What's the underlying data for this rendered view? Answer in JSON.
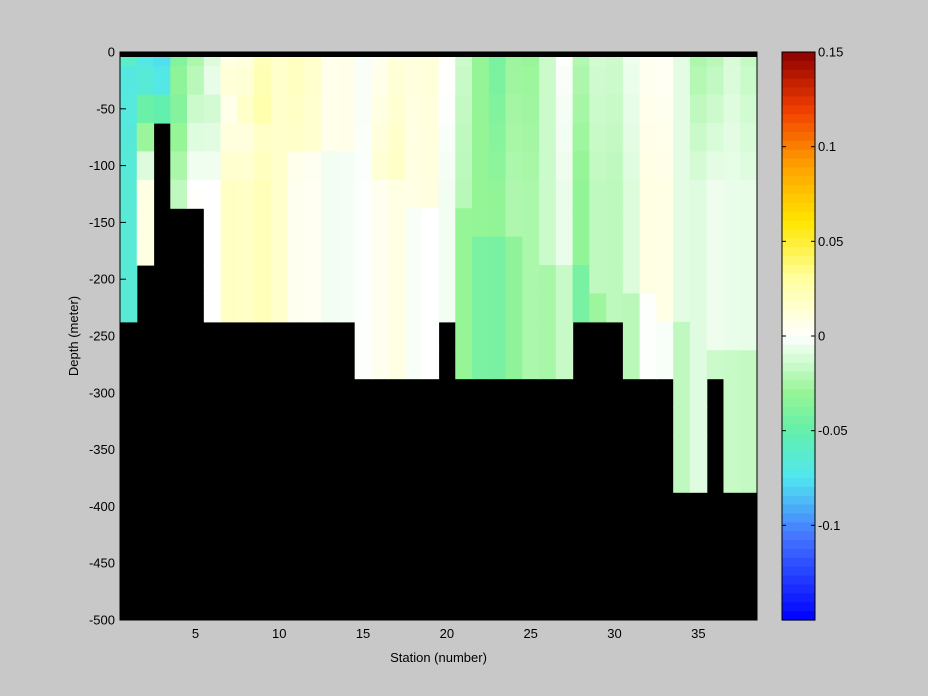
{
  "chart_data": {
    "type": "heatmap",
    "xlabel": "Station (number)",
    "ylabel": "Depth (meter)",
    "xlim": [
      1,
      38
    ],
    "ylim": [
      -500,
      0
    ],
    "xticks": [
      5,
      10,
      15,
      20,
      25,
      30,
      35
    ],
    "yticks": [
      0,
      -50,
      -100,
      -150,
      -200,
      -250,
      -300,
      -350,
      -400,
      -450,
      -500
    ],
    "colorbar": {
      "range": [
        -0.15,
        0.15
      ],
      "ticks": [
        0.15,
        0.1,
        0.05,
        0,
        -0.05,
        -0.1
      ],
      "tick_labels": [
        "0.15",
        "0.1",
        "0.05",
        "0",
        "-0.05",
        "-0.1"
      ],
      "colormap": "jet-white-center"
    },
    "land_color": "#000000",
    "stations": [
      1,
      2,
      3,
      4,
      5,
      6,
      7,
      8,
      9,
      10,
      11,
      12,
      13,
      14,
      15,
      16,
      17,
      18,
      19,
      20,
      21,
      22,
      23,
      24,
      25,
      26,
      27,
      28,
      29,
      30,
      31,
      32,
      33,
      34,
      35,
      36,
      37,
      38
    ],
    "depths": [
      -5,
      -25,
      -50,
      -75,
      -100,
      -125,
      -150,
      -175,
      -200,
      -225,
      -250,
      -275,
      -300,
      -325,
      -350,
      -375,
      -400,
      -425,
      -450,
      -475,
      -500
    ],
    "bottom_depth": [
      -250,
      -200,
      -75,
      -150,
      -150,
      -250,
      -250,
      -250,
      -250,
      -250,
      -250,
      -250,
      -250,
      -250,
      -300,
      -300,
      -300,
      -300,
      -300,
      -250,
      -300,
      -300,
      -300,
      -300,
      -300,
      -300,
      -300,
      -250,
      -250,
      -250,
      -300,
      -300,
      -300,
      -400,
      -400,
      -300,
      -400,
      -400
    ],
    "surface_profile": [
      -0.06,
      -0.075,
      -0.075,
      -0.04,
      -0.02,
      -0.01,
      0.005,
      0.012,
      0.02,
      0.02,
      0.02,
      0.012,
      0.008,
      0.005,
      0.002,
      0.005,
      0.008,
      0.012,
      0.01,
      0.005,
      -0.015,
      -0.035,
      -0.04,
      -0.03,
      -0.025,
      -0.015,
      -0.005,
      -0.02,
      -0.015,
      -0.01,
      -0.005,
      0.0,
      0.005,
      -0.01,
      -0.02,
      -0.02,
      -0.015,
      -0.015
    ],
    "deep_profile": [
      -0.055,
      0.015,
      0.02,
      -0.01,
      0.005,
      0.01,
      0.025,
      0.03,
      0.03,
      0.02,
      0.015,
      0.01,
      0.008,
      0.005,
      0.003,
      0.015,
      0.015,
      0.01,
      0.008,
      0.0,
      -0.02,
      -0.035,
      -0.03,
      -0.025,
      -0.02,
      -0.015,
      -0.01,
      -0.03,
      -0.02,
      -0.015,
      -0.01,
      0.005,
      0.01,
      -0.01,
      -0.005,
      -0.005,
      -0.01,
      -0.005
    ]
  }
}
